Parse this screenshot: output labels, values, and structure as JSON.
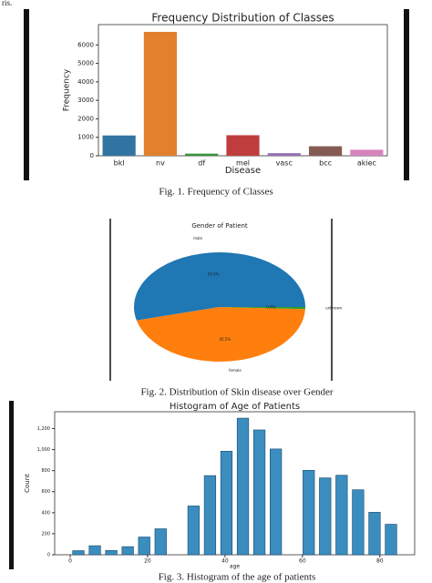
{
  "fragment": "ris.",
  "captions": [
    "Fig. 1. Frequency of Classes",
    "Fig. 2. Distribution of Skin disease over Gender",
    "Fig. 3. Histogram of the age of patients"
  ],
  "chart_data": [
    {
      "type": "bar",
      "title": "Frequency Distribution of Classes",
      "x_label": "Disease",
      "y_label": "Frequency",
      "categories": [
        "bkl",
        "nv",
        "df",
        "mel",
        "vasc",
        "bcc",
        "akiec"
      ],
      "values": [
        1099,
        6705,
        115,
        1113,
        142,
        514,
        327
      ],
      "colors": [
        "#3274a1",
        "#e1812c",
        "#3a923a",
        "#c03d3e",
        "#9372b2",
        "#845b53",
        "#d684bd"
      ],
      "ylim": [
        0,
        7100
      ],
      "yticks": [
        0,
        1000,
        2000,
        3000,
        4000,
        5000,
        6000
      ]
    },
    {
      "type": "pie",
      "title": "Gender of Patient",
      "categories": [
        "male",
        "female",
        "unknown"
      ],
      "values": [
        54.0,
        45.5,
        0.6
      ],
      "value_labels": [
        "54.0%",
        "45.5%",
        "0.6%"
      ],
      "colors": [
        "#1f77b4",
        "#ff7f0e",
        "#2ca02c"
      ]
    },
    {
      "type": "histogram",
      "title": "Histogram of Age of Patients",
      "x_label": "age",
      "y_label": "Count",
      "bins": [
        0,
        4.25,
        8.5,
        12.75,
        17,
        21.25,
        25.5,
        29.75,
        34,
        38.25,
        42.5,
        46.75,
        51,
        55.25,
        59.5,
        63.75,
        68,
        72.25,
        76.5,
        80.75,
        85
      ],
      "values": [
        39,
        86,
        41,
        77,
        169,
        247,
        0,
        464,
        753,
        985,
        1299,
        1187,
        1006,
        0,
        803,
        731,
        756,
        618,
        404,
        290
      ],
      "color": "#3b8dc0",
      "xlim": [
        -4,
        89
      ],
      "xticks": [
        0,
        20,
        40,
        60,
        80
      ],
      "ylim": [
        0,
        1360
      ],
      "yticks": [
        0,
        200,
        400,
        600,
        {
          "value": 800,
          "label": "800"
        },
        {
          "value": 1000,
          "label": "1,000"
        },
        {
          "value": 1200,
          "label": "1,200"
        }
      ]
    }
  ]
}
